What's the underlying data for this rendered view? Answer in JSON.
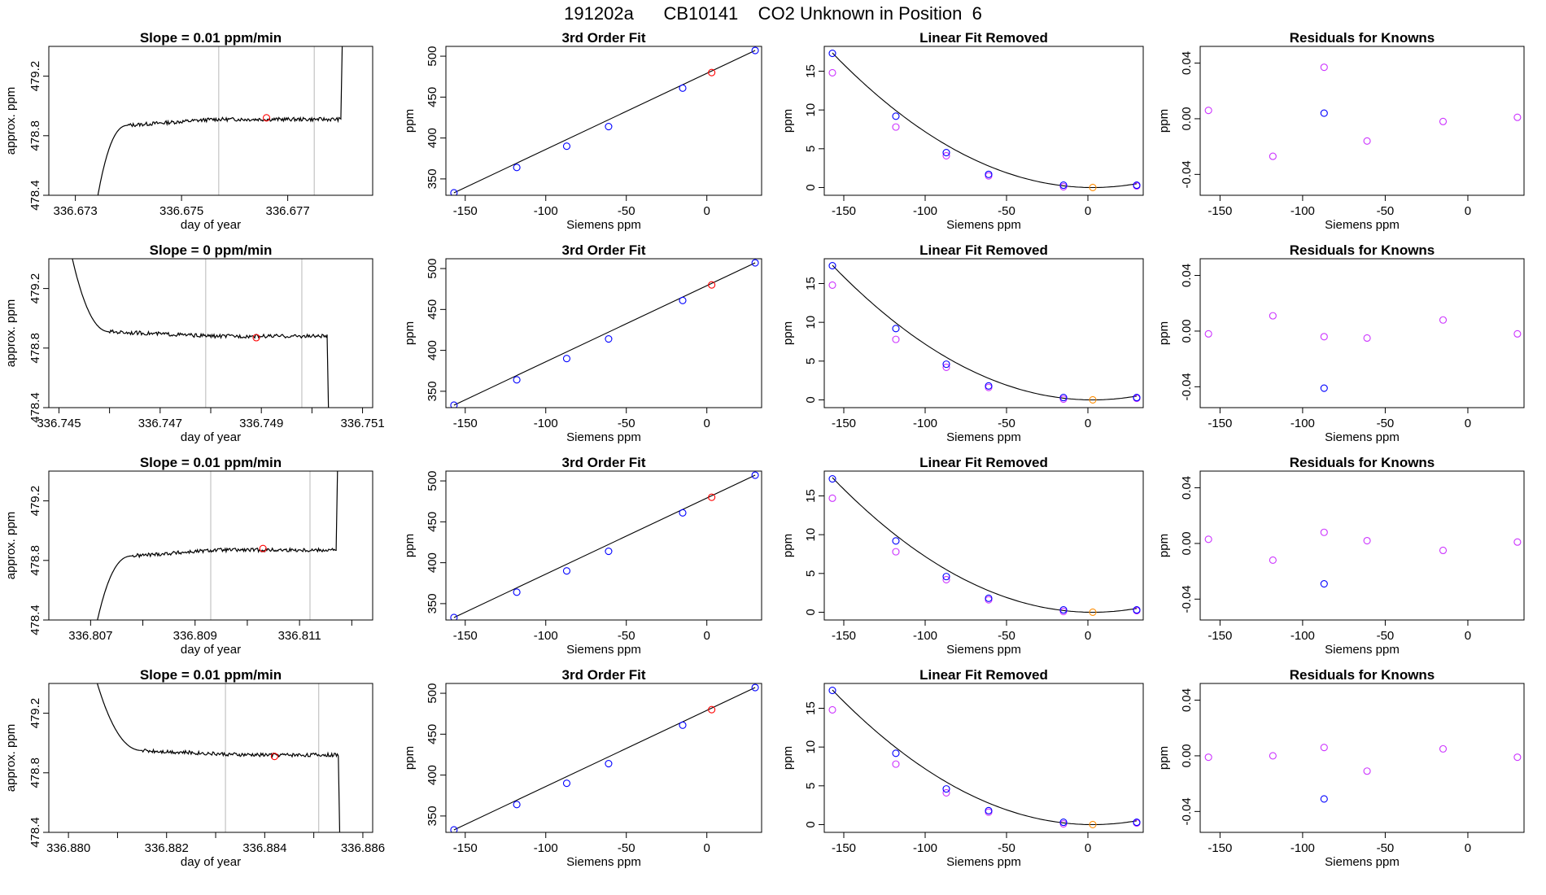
{
  "figure_title": "191202a      CB10141    CO2 Unknown in Position  6",
  "colors": {
    "line": "#000000",
    "marker_measured": "#ff0000",
    "marker_known": "#0000ff",
    "marker_adjusted": "#cc33ff",
    "marker_unknown": "#ff8c00",
    "vline": "#c8c8c8"
  },
  "chart_data": [
    {
      "type": "line",
      "row": 0,
      "col": 0,
      "title": "Slope =  0.01  ppm/min",
      "xlabel": "day of year",
      "ylabel": "approx. ppm",
      "xlim": [
        336.6725,
        336.6786
      ],
      "ylim": [
        478.4,
        479.4
      ],
      "xticks": [
        336.673,
        336.675,
        336.677
      ],
      "xtick_labels": [
        "336.673",
        "336.675",
        "336.677"
      ],
      "yticks": [
        478.4,
        478.8,
        479.2
      ],
      "ytick_labels": [
        "478.4",
        "478.8",
        "479.2"
      ],
      "series_shape": "rise",
      "start": 336.6734,
      "plateau_start": 336.674,
      "end": 336.678,
      "level": 478.91,
      "edge_value": 479.5,
      "vlines": [
        336.6757,
        336.6775
      ],
      "marker": {
        "x": 336.6766,
        "y": 478.92
      }
    },
    {
      "type": "scatter",
      "row": 0,
      "col": 1,
      "title": "3rd Order Fit",
      "xlabel": "Siemens ppm",
      "ylabel": "ppm",
      "xlim": [
        -162,
        34
      ],
      "ylim": [
        330,
        512
      ],
      "xticks": [
        -150,
        -100,
        -50,
        0
      ],
      "xtick_labels": [
        "-150",
        "-100",
        "-50",
        "0"
      ],
      "yticks": [
        350,
        400,
        450,
        500
      ],
      "ytick_labels": [
        "350",
        "400",
        "450",
        "500"
      ],
      "curve_points": [
        [
          -157,
          333
        ],
        [
          30,
          507
        ]
      ],
      "knowns": [
        [
          -157,
          333
        ],
        [
          -118,
          364
        ],
        [
          -87,
          390
        ],
        [
          -61,
          414
        ],
        [
          -15,
          461
        ],
        [
          30,
          507
        ]
      ],
      "unknown": [
        3,
        480
      ]
    },
    {
      "type": "scatter",
      "row": 0,
      "col": 2,
      "title": "Linear Fit Removed",
      "xlabel": "Siemens ppm",
      "ylabel": "ppm",
      "xlim": [
        -162,
        34
      ],
      "ylim": [
        -1,
        18.2
      ],
      "xticks": [
        -150,
        -100,
        -50,
        0
      ],
      "xtick_labels": [
        "-150",
        "-100",
        "-50",
        "0"
      ],
      "yticks": [
        0,
        5,
        10,
        15
      ],
      "ytick_labels": [
        "0",
        "5",
        "10",
        "15"
      ],
      "curve": {
        "vertex_x": 3,
        "vertex_y": 0,
        "a": 0.000678,
        "xmin": -157,
        "xmax": 30
      },
      "knowns": [
        [
          -157,
          17.3
        ],
        [
          -118,
          9.2
        ],
        [
          -87,
          4.5
        ],
        [
          -61,
          1.7
        ],
        [
          -15,
          0.3
        ],
        [
          30,
          0.3
        ]
      ],
      "adjusted": [
        [
          -157,
          14.8
        ],
        [
          -118,
          7.8
        ],
        [
          -87,
          4.1
        ],
        [
          -61,
          1.5
        ],
        [
          -15,
          0.1
        ],
        [
          30,
          0.2
        ]
      ],
      "unknown": [
        3,
        0
      ]
    },
    {
      "type": "scatter",
      "row": 0,
      "col": 3,
      "title": "Residuals for Knowns",
      "xlabel": "Siemens ppm",
      "ylabel": "ppm",
      "xlim": [
        -162,
        34
      ],
      "ylim": [
        -0.055,
        0.052
      ],
      "xticks": [
        -150,
        -100,
        -50,
        0
      ],
      "xtick_labels": [
        "-150",
        "-100",
        "-50",
        "0"
      ],
      "yticks": [
        -0.04,
        0,
        0.04
      ],
      "ytick_labels": [
        "-0.04",
        "0.00",
        "0.04"
      ],
      "residuals": [
        [
          -157,
          0.006
        ],
        [
          -118,
          -0.027
        ],
        [
          -87,
          0.037
        ],
        [
          -61,
          -0.016
        ],
        [
          -15,
          -0.002
        ],
        [
          30,
          0.001
        ]
      ],
      "knowns": [
        [
          -87,
          0.004
        ]
      ]
    },
    {
      "type": "line",
      "row": 1,
      "col": 0,
      "title": "Slope =  0  ppm/min",
      "xlabel": "day of year",
      "ylabel": "approx. ppm",
      "xlim": [
        336.7448,
        336.7512
      ],
      "ylim": [
        478.4,
        479.4
      ],
      "xticks": [
        336.745,
        336.746,
        336.747,
        336.748,
        336.749,
        336.75,
        336.751
      ],
      "xtick_labels": [
        "336.745",
        "",
        "336.747",
        "",
        "336.749",
        "",
        "336.751"
      ],
      "yticks": [
        478.4,
        478.8,
        479.2
      ],
      "ytick_labels": [
        "478.4",
        "478.8",
        "479.2"
      ],
      "series_shape": "fall",
      "start": 336.7452,
      "plateau_start": 336.746,
      "end": 336.7503,
      "level": 478.88,
      "edge_value": 479.5,
      "vlines": [
        336.7479,
        336.7498
      ],
      "marker": {
        "x": 336.7489,
        "y": 478.87
      }
    },
    {
      "type": "scatter",
      "row": 1,
      "col": 1,
      "title": "3rd Order Fit",
      "xlabel": "Siemens ppm",
      "ylabel": "ppm",
      "xlim": [
        -162,
        34
      ],
      "ylim": [
        330,
        512
      ],
      "xticks": [
        -150,
        -100,
        -50,
        0
      ],
      "xtick_labels": [
        "-150",
        "-100",
        "-50",
        "0"
      ],
      "yticks": [
        350,
        400,
        450,
        500
      ],
      "ytick_labels": [
        "350",
        "400",
        "450",
        "500"
      ],
      "curve_points": [
        [
          -157,
          333
        ],
        [
          30,
          507
        ]
      ],
      "knowns": [
        [
          -157,
          333
        ],
        [
          -118,
          364
        ],
        [
          -87,
          390
        ],
        [
          -61,
          414
        ],
        [
          -15,
          461
        ],
        [
          30,
          507
        ]
      ],
      "unknown": [
        3,
        480
      ]
    },
    {
      "type": "scatter",
      "row": 1,
      "col": 2,
      "title": "Linear Fit Removed",
      "xlabel": "Siemens ppm",
      "ylabel": "ppm",
      "xlim": [
        -162,
        34
      ],
      "ylim": [
        -1,
        18.2
      ],
      "xticks": [
        -150,
        -100,
        -50,
        0
      ],
      "xtick_labels": [
        "-150",
        "-100",
        "-50",
        "0"
      ],
      "yticks": [
        0,
        5,
        10,
        15
      ],
      "ytick_labels": [
        "0",
        "5",
        "10",
        "15"
      ],
      "curve": {
        "vertex_x": 3,
        "vertex_y": 0,
        "a": 0.000678,
        "xmin": -157,
        "xmax": 30
      },
      "knowns": [
        [
          -157,
          17.3
        ],
        [
          -118,
          9.2
        ],
        [
          -87,
          4.6
        ],
        [
          -61,
          1.8
        ],
        [
          -15,
          0.3
        ],
        [
          30,
          0.3
        ]
      ],
      "adjusted": [
        [
          -157,
          14.8
        ],
        [
          -118,
          7.8
        ],
        [
          -87,
          4.2
        ],
        [
          -61,
          1.6
        ],
        [
          -15,
          0.1
        ],
        [
          30,
          0.2
        ]
      ],
      "unknown": [
        3,
        0
      ]
    },
    {
      "type": "scatter",
      "row": 1,
      "col": 3,
      "title": "Residuals for Knowns",
      "xlabel": "Siemens ppm",
      "ylabel": "ppm",
      "xlim": [
        -162,
        34
      ],
      "ylim": [
        -0.055,
        0.052
      ],
      "xticks": [
        -150,
        -100,
        -50,
        0
      ],
      "xtick_labels": [
        "-150",
        "-100",
        "-50",
        "0"
      ],
      "yticks": [
        -0.04,
        0,
        0.04
      ],
      "ytick_labels": [
        "-0.04",
        "0.00",
        "0.04"
      ],
      "residuals": [
        [
          -157,
          -0.002
        ],
        [
          -118,
          0.011
        ],
        [
          -87,
          -0.004
        ],
        [
          -61,
          -0.005
        ],
        [
          -15,
          0.008
        ],
        [
          30,
          -0.002
        ]
      ],
      "knowns": [
        [
          -87,
          -0.041
        ]
      ]
    },
    {
      "type": "line",
      "row": 2,
      "col": 0,
      "title": "Slope =  0.01  ppm/min",
      "xlabel": "day of year",
      "ylabel": "approx. ppm",
      "xlim": [
        336.8062,
        336.8124
      ],
      "ylim": [
        478.4,
        479.4
      ],
      "xticks": [
        336.807,
        336.808,
        336.809,
        336.81,
        336.811,
        336.812
      ],
      "xtick_labels": [
        "336.807",
        "",
        "336.809",
        "",
        "336.811",
        ""
      ],
      "yticks": [
        478.4,
        478.8,
        479.2
      ],
      "ytick_labels": [
        "478.4",
        "478.8",
        "479.2"
      ],
      "series_shape": "rise",
      "start": 336.8071,
      "plateau_start": 336.8078,
      "end": 336.8117,
      "level": 478.87,
      "edge_value": 479.5,
      "vlines": [
        336.8093,
        336.8112
      ],
      "marker": {
        "x": 336.8103,
        "y": 478.88
      }
    },
    {
      "type": "scatter",
      "row": 2,
      "col": 1,
      "title": "3rd Order Fit",
      "xlabel": "Siemens ppm",
      "ylabel": "ppm",
      "xlim": [
        -162,
        34
      ],
      "ylim": [
        330,
        512
      ],
      "xticks": [
        -150,
        -100,
        -50,
        0
      ],
      "xtick_labels": [
        "-150",
        "-100",
        "-50",
        "0"
      ],
      "yticks": [
        350,
        400,
        450,
        500
      ],
      "ytick_labels": [
        "350",
        "400",
        "450",
        "500"
      ],
      "curve_points": [
        [
          -157,
          333
        ],
        [
          30,
          507
        ]
      ],
      "knowns": [
        [
          -157,
          333
        ],
        [
          -118,
          364
        ],
        [
          -87,
          390
        ],
        [
          -61,
          414
        ],
        [
          -15,
          461
        ],
        [
          30,
          507
        ]
      ],
      "unknown": [
        3,
        480
      ]
    },
    {
      "type": "scatter",
      "row": 2,
      "col": 2,
      "title": "Linear Fit Removed",
      "xlabel": "Siemens ppm",
      "ylabel": "ppm",
      "xlim": [
        -162,
        34
      ],
      "ylim": [
        -1,
        18.2
      ],
      "xticks": [
        -150,
        -100,
        -50,
        0
      ],
      "xtick_labels": [
        "-150",
        "-100",
        "-50",
        "0"
      ],
      "yticks": [
        0,
        5,
        10,
        15
      ],
      "ytick_labels": [
        "0",
        "5",
        "10",
        "15"
      ],
      "curve": {
        "vertex_x": 3,
        "vertex_y": 0,
        "a": 0.000678,
        "xmin": -157,
        "xmax": 30
      },
      "knowns": [
        [
          -157,
          17.2
        ],
        [
          -118,
          9.2
        ],
        [
          -87,
          4.6
        ],
        [
          -61,
          1.8
        ],
        [
          -15,
          0.3
        ],
        [
          30,
          0.3
        ]
      ],
      "adjusted": [
        [
          -157,
          14.7
        ],
        [
          -118,
          7.8
        ],
        [
          -87,
          4.2
        ],
        [
          -61,
          1.6
        ],
        [
          -15,
          0.1
        ],
        [
          30,
          0.2
        ]
      ],
      "unknown": [
        3,
        0
      ]
    },
    {
      "type": "scatter",
      "row": 2,
      "col": 3,
      "title": "Residuals for Knowns",
      "xlabel": "Siemens ppm",
      "ylabel": "ppm",
      "xlim": [
        -162,
        34
      ],
      "ylim": [
        -0.055,
        0.052
      ],
      "xticks": [
        -150,
        -100,
        -50,
        0
      ],
      "xtick_labels": [
        "-150",
        "-100",
        "-50",
        "0"
      ],
      "yticks": [
        -0.04,
        0,
        0.04
      ],
      "ytick_labels": [
        "-0.04",
        "0.00",
        "0.04"
      ],
      "residuals": [
        [
          -157,
          0.003
        ],
        [
          -118,
          -0.012
        ],
        [
          -87,
          0.008
        ],
        [
          -61,
          0.002
        ],
        [
          -15,
          -0.005
        ],
        [
          30,
          0.001
        ]
      ],
      "knowns": [
        [
          -87,
          -0.029
        ]
      ]
    },
    {
      "type": "line",
      "row": 3,
      "col": 0,
      "title": "Slope =  0.01  ppm/min",
      "xlabel": "day of year",
      "ylabel": "approx. ppm",
      "xlim": [
        336.8796,
        336.8862
      ],
      "ylim": [
        478.4,
        479.4
      ],
      "xticks": [
        336.88,
        336.881,
        336.882,
        336.883,
        336.884,
        336.885,
        336.886
      ],
      "xtick_labels": [
        "336.880",
        "",
        "336.882",
        "",
        "336.884",
        "",
        "336.886"
      ],
      "yticks": [
        478.4,
        478.8,
        479.2
      ],
      "ytick_labels": [
        "478.4",
        "478.8",
        "479.2"
      ],
      "series_shape": "fall",
      "start": 336.8805,
      "plateau_start": 336.8815,
      "end": 336.8855,
      "level": 478.92,
      "edge_value": 479.5,
      "vlines": [
        336.8832,
        336.8851
      ],
      "marker": {
        "x": 336.8842,
        "y": 478.91
      }
    },
    {
      "type": "scatter",
      "row": 3,
      "col": 1,
      "title": "3rd Order Fit",
      "xlabel": "Siemens ppm",
      "ylabel": "ppm",
      "xlim": [
        -162,
        34
      ],
      "ylim": [
        330,
        512
      ],
      "xticks": [
        -150,
        -100,
        -50,
        0
      ],
      "xtick_labels": [
        "-150",
        "-100",
        "-50",
        "0"
      ],
      "yticks": [
        350,
        400,
        450,
        500
      ],
      "ytick_labels": [
        "350",
        "400",
        "450",
        "500"
      ],
      "curve_points": [
        [
          -157,
          333
        ],
        [
          30,
          507
        ]
      ],
      "knowns": [
        [
          -157,
          333
        ],
        [
          -118,
          364
        ],
        [
          -87,
          390
        ],
        [
          -61,
          414
        ],
        [
          -15,
          461
        ],
        [
          30,
          507
        ]
      ],
      "unknown": [
        3,
        480
      ]
    },
    {
      "type": "scatter",
      "row": 3,
      "col": 2,
      "title": "Linear Fit Removed",
      "xlabel": "Siemens ppm",
      "ylabel": "ppm",
      "xlim": [
        -162,
        34
      ],
      "ylim": [
        -1,
        18.2
      ],
      "xticks": [
        -150,
        -100,
        -50,
        0
      ],
      "xtick_labels": [
        "-150",
        "-100",
        "-50",
        "0"
      ],
      "yticks": [
        0,
        5,
        10,
        15
      ],
      "ytick_labels": [
        "0",
        "5",
        "10",
        "15"
      ],
      "curve": {
        "vertex_x": 3,
        "vertex_y": 0,
        "a": 0.000678,
        "xmin": -157,
        "xmax": 30
      },
      "knowns": [
        [
          -157,
          17.3
        ],
        [
          -118,
          9.2
        ],
        [
          -87,
          4.6
        ],
        [
          -61,
          1.8
        ],
        [
          -15,
          0.3
        ],
        [
          30,
          0.3
        ]
      ],
      "adjusted": [
        [
          -157,
          14.8
        ],
        [
          -118,
          7.8
        ],
        [
          -87,
          4.1
        ],
        [
          -61,
          1.6
        ],
        [
          -15,
          0.1
        ],
        [
          30,
          0.2
        ]
      ],
      "unknown": [
        3,
        0
      ]
    },
    {
      "type": "scatter",
      "row": 3,
      "col": 3,
      "title": "Residuals for Knowns",
      "xlabel": "Siemens ppm",
      "ylabel": "ppm",
      "xlim": [
        -162,
        34
      ],
      "ylim": [
        -0.055,
        0.052
      ],
      "xticks": [
        -150,
        -100,
        -50,
        0
      ],
      "xtick_labels": [
        "-150",
        "-100",
        "-50",
        "0"
      ],
      "yticks": [
        -0.04,
        0,
        0.04
      ],
      "ytick_labels": [
        "-0.04",
        "0.00",
        "0.04"
      ],
      "residuals": [
        [
          -157,
          -0.001
        ],
        [
          -118,
          0.0
        ],
        [
          -87,
          0.006
        ],
        [
          -61,
          -0.011
        ],
        [
          -15,
          0.005
        ],
        [
          30,
          -0.001
        ]
      ],
      "knowns": [
        [
          -87,
          -0.031
        ]
      ]
    }
  ]
}
